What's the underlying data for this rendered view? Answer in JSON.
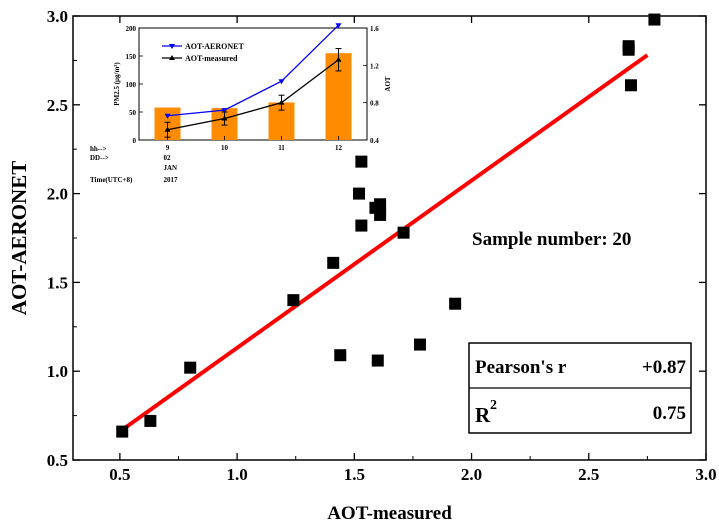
{
  "chart_data": [
    {
      "type": "scatter",
      "xlabel": "AOT-measured",
      "ylabel": "AOT-AERONET",
      "xlim": [
        0.3,
        3.0
      ],
      "ylim": [
        0.5,
        3.0
      ],
      "x_ticks": [
        "0.5",
        "1.0",
        "1.5",
        "2.0",
        "2.5",
        "3.0"
      ],
      "y_ticks": [
        "0.5",
        "1.0",
        "1.5",
        "2.0",
        "2.5",
        "3.0"
      ],
      "marker_color": "#000000",
      "fit_color": "#ff0000",
      "points": [
        {
          "x": 0.51,
          "y": 0.66
        },
        {
          "x": 0.63,
          "y": 0.72
        },
        {
          "x": 0.8,
          "y": 1.02
        },
        {
          "x": 1.24,
          "y": 1.4
        },
        {
          "x": 1.41,
          "y": 1.61
        },
        {
          "x": 1.44,
          "y": 1.09
        },
        {
          "x": 1.52,
          "y": 2.0
        },
        {
          "x": 1.53,
          "y": 2.18
        },
        {
          "x": 1.53,
          "y": 1.82
        },
        {
          "x": 1.59,
          "y": 1.92
        },
        {
          "x": 1.61,
          "y": 1.94
        },
        {
          "x": 1.61,
          "y": 1.88
        },
        {
          "x": 1.6,
          "y": 1.06
        },
        {
          "x": 1.71,
          "y": 1.78
        },
        {
          "x": 1.78,
          "y": 1.15
        },
        {
          "x": 1.93,
          "y": 1.38
        },
        {
          "x": 2.67,
          "y": 2.83
        },
        {
          "x": 2.67,
          "y": 2.81
        },
        {
          "x": 2.68,
          "y": 2.61
        },
        {
          "x": 2.78,
          "y": 2.98
        }
      ],
      "fit_line": {
        "x": [
          0.51,
          2.75
        ],
        "y": [
          0.67,
          2.78
        ]
      },
      "annotation": "Sample number: 20",
      "stats_table": {
        "pearson_label": "Pearson's r",
        "pearson_value": "+0.87",
        "r2_label": "R",
        "r2_sup": "2",
        "r2_value": "0.75"
      }
    },
    {
      "type": "bar+line",
      "categories": [
        "9",
        "10",
        "11",
        "12"
      ],
      "ylabel_left": "PM2.5 (μg/m³)",
      "ylabel_right": "AOT",
      "ylim_left": [
        0,
        200
      ],
      "ylim_right": [
        0.4,
        1.6
      ],
      "left_ticks": [
        "0",
        "50",
        "100",
        "150",
        "200"
      ],
      "right_ticks": [
        "0.4",
        "0.8",
        "1.2",
        "1.6"
      ],
      "bars": {
        "color": "#ff8c00",
        "values": [
          58,
          57,
          67,
          155
        ]
      },
      "series": [
        {
          "name": "AOT-AERONET",
          "color": "#0000ff",
          "values": [
            0.66,
            0.72,
            1.03,
            1.63
          ]
        },
        {
          "name": "AOT-measured",
          "color": "#000000",
          "values": [
            0.51,
            0.63,
            0.8,
            1.26
          ],
          "errors": [
            0.08,
            0.07,
            0.08,
            0.12
          ]
        }
      ],
      "time_rows": {
        "hh_label": "hh-->",
        "dd_label": "DD-->",
        "time_label": "Time(UTC+8)",
        "dd_value": "02",
        "month": "JAN",
        "year": "2017"
      }
    }
  ]
}
